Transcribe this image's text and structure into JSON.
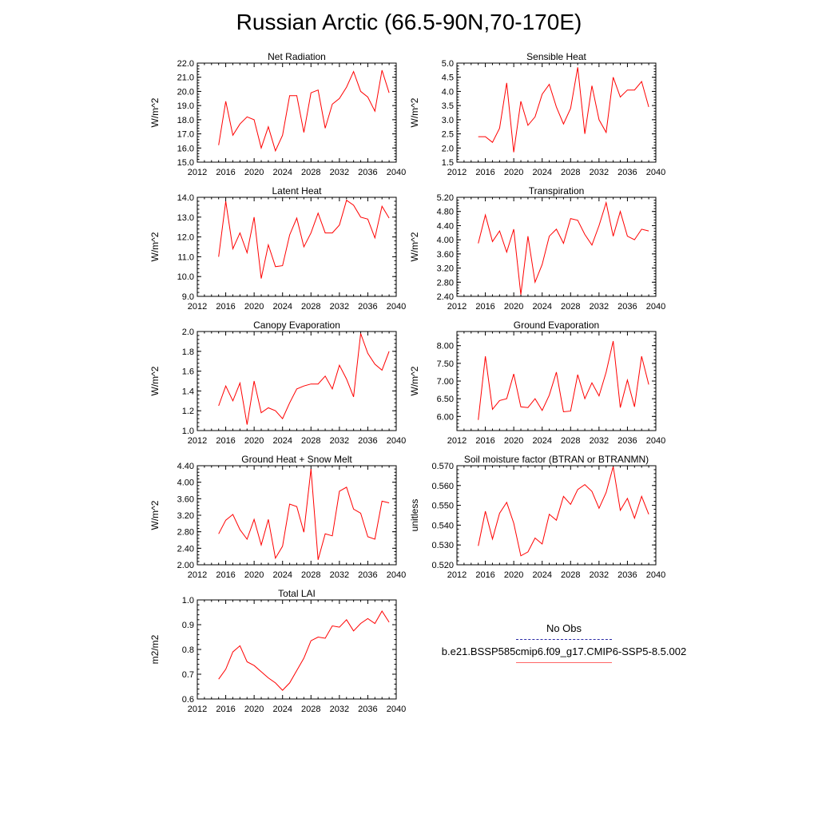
{
  "title": "Russian Arctic (66.5-90N,70-170E)",
  "legend": {
    "obs_label": "No Obs",
    "model_label": "b.e21.BSSP585cmip6.f09_g17.CMIP6-SSP5-8.5.002",
    "obs_color": "#2a2aa6",
    "model_color": "#ff0000"
  },
  "chart_data": [
    {
      "type": "line",
      "title": "Net Radiation",
      "ylabel": "W/m^2",
      "xlim": [
        2012,
        2040
      ],
      "xticks": [
        2012,
        2016,
        2020,
        2024,
        2028,
        2032,
        2036,
        2040
      ],
      "ylim": [
        15.0,
        22.0
      ],
      "yticks": [
        "15.0",
        "16.0",
        "17.0",
        "18.0",
        "19.0",
        "20.0",
        "21.0",
        "22.0"
      ],
      "x": [
        2015,
        2016,
        2017,
        2018,
        2019,
        2020,
        2021,
        2022,
        2023,
        2024,
        2025,
        2026,
        2027,
        2028,
        2029,
        2030,
        2031,
        2032,
        2033,
        2034,
        2035,
        2036,
        2037,
        2038,
        2039
      ],
      "series": [
        {
          "values": [
            16.2,
            19.3,
            16.9,
            17.7,
            18.2,
            18.0,
            16.0,
            17.5,
            15.8,
            16.9,
            19.7,
            19.7,
            17.1,
            19.9,
            20.1,
            17.4,
            19.1,
            19.5,
            20.3,
            21.4,
            20.0,
            19.6,
            18.6,
            21.5,
            19.9
          ],
          "color": "#ff0000"
        }
      ]
    },
    {
      "type": "line",
      "title": "Sensible Heat",
      "ylabel": "W/m^2",
      "xlim": [
        2012,
        2040
      ],
      "xticks": [
        2012,
        2016,
        2020,
        2024,
        2028,
        2032,
        2036,
        2040
      ],
      "ylim": [
        1.5,
        5.0
      ],
      "yticks": [
        "1.5",
        "2.0",
        "2.5",
        "3.0",
        "3.5",
        "4.0",
        "4.5",
        "5.0"
      ],
      "x": [
        2015,
        2016,
        2017,
        2018,
        2019,
        2020,
        2021,
        2022,
        2023,
        2024,
        2025,
        2026,
        2027,
        2028,
        2029,
        2030,
        2031,
        2032,
        2033,
        2034,
        2035,
        2036,
        2037,
        2038,
        2039
      ],
      "series": [
        {
          "values": [
            2.4,
            2.4,
            2.2,
            2.7,
            4.3,
            1.85,
            3.65,
            2.8,
            3.1,
            3.9,
            4.25,
            3.45,
            2.85,
            3.4,
            4.85,
            2.5,
            4.2,
            3.0,
            2.55,
            4.5,
            3.8,
            4.05,
            4.05,
            4.35,
            3.45
          ],
          "color": "#ff0000"
        }
      ]
    },
    {
      "type": "line",
      "title": "Latent Heat",
      "ylabel": "W/m^2",
      "xlim": [
        2012,
        2040
      ],
      "xticks": [
        2012,
        2016,
        2020,
        2024,
        2028,
        2032,
        2036,
        2040
      ],
      "ylim": [
        9.0,
        14.0
      ],
      "yticks": [
        "9.0",
        "10.0",
        "11.0",
        "12.0",
        "13.0",
        "14.0"
      ],
      "x": [
        2015,
        2016,
        2017,
        2018,
        2019,
        2020,
        2021,
        2022,
        2023,
        2024,
        2025,
        2026,
        2027,
        2028,
        2029,
        2030,
        2031,
        2032,
        2033,
        2034,
        2035,
        2036,
        2037,
        2038,
        2039
      ],
      "series": [
        {
          "values": [
            11.0,
            13.8,
            11.4,
            12.2,
            11.2,
            13.0,
            9.9,
            11.6,
            10.5,
            10.55,
            12.1,
            12.95,
            11.5,
            12.2,
            13.2,
            12.2,
            12.2,
            12.6,
            13.85,
            13.6,
            13.0,
            12.9,
            11.95,
            13.55,
            12.95
          ],
          "color": "#ff0000"
        }
      ]
    },
    {
      "type": "line",
      "title": "Transpiration",
      "ylabel": "W/m^2",
      "xlim": [
        2012,
        2040
      ],
      "xticks": [
        2012,
        2016,
        2020,
        2024,
        2028,
        2032,
        2036,
        2040
      ],
      "ylim": [
        2.4,
        5.2
      ],
      "yticks": [
        "2.40",
        "2.80",
        "3.20",
        "3.60",
        "4.00",
        "4.40",
        "4.80",
        "5.20"
      ],
      "x": [
        2015,
        2016,
        2017,
        2018,
        2019,
        2020,
        2021,
        2022,
        2023,
        2024,
        2025,
        2026,
        2027,
        2028,
        2029,
        2030,
        2031,
        2032,
        2033,
        2034,
        2035,
        2036,
        2037,
        2038,
        2039
      ],
      "series": [
        {
          "values": [
            3.9,
            4.7,
            3.95,
            4.25,
            3.65,
            4.3,
            2.45,
            4.1,
            2.8,
            3.3,
            4.1,
            4.3,
            3.9,
            4.6,
            4.55,
            4.15,
            3.85,
            4.4,
            5.05,
            4.1,
            4.8,
            4.1,
            4.0,
            4.3,
            4.25
          ],
          "color": "#ff0000"
        }
      ]
    },
    {
      "type": "line",
      "title": "Canopy Evaporation",
      "ylabel": "W/m^2",
      "xlim": [
        2012,
        2040
      ],
      "xticks": [
        2012,
        2016,
        2020,
        2024,
        2028,
        2032,
        2036,
        2040
      ],
      "ylim": [
        1.0,
        2.0
      ],
      "yticks": [
        "1.0",
        "1.2",
        "1.4",
        "1.6",
        "1.8",
        "2.0"
      ],
      "x": [
        2015,
        2016,
        2017,
        2018,
        2019,
        2020,
        2021,
        2022,
        2023,
        2024,
        2025,
        2026,
        2027,
        2028,
        2029,
        2030,
        2031,
        2032,
        2033,
        2034,
        2035,
        2036,
        2037,
        2038,
        2039
      ],
      "series": [
        {
          "values": [
            1.25,
            1.45,
            1.3,
            1.48,
            1.06,
            1.5,
            1.18,
            1.23,
            1.2,
            1.12,
            1.28,
            1.42,
            1.45,
            1.47,
            1.47,
            1.55,
            1.42,
            1.66,
            1.52,
            1.34,
            1.98,
            1.78,
            1.67,
            1.61,
            1.8
          ],
          "color": "#ff0000"
        }
      ]
    },
    {
      "type": "line",
      "title": "Ground Evaporation",
      "ylabel": "W/m^2",
      "xlim": [
        2012,
        2040
      ],
      "xticks": [
        2012,
        2016,
        2020,
        2024,
        2028,
        2032,
        2036,
        2040
      ],
      "ylim": [
        5.6,
        8.4
      ],
      "yticks": [
        "6.00",
        "6.50",
        "7.00",
        "7.50",
        "8.00"
      ],
      "x": [
        2015,
        2016,
        2017,
        2018,
        2019,
        2020,
        2021,
        2022,
        2023,
        2024,
        2025,
        2026,
        2027,
        2028,
        2029,
        2030,
        2031,
        2032,
        2033,
        2034,
        2035,
        2036,
        2037,
        2038,
        2039
      ],
      "series": [
        {
          "values": [
            5.9,
            7.7,
            6.2,
            6.45,
            6.5,
            7.2,
            6.27,
            6.25,
            6.5,
            6.17,
            6.6,
            7.25,
            6.13,
            6.15,
            7.18,
            6.5,
            6.95,
            6.58,
            7.25,
            8.13,
            6.25,
            7.03,
            6.27,
            7.7,
            6.9
          ],
          "color": "#ff0000"
        }
      ]
    },
    {
      "type": "line",
      "title": "Ground Heat + Snow Melt",
      "ylabel": "W/m^2",
      "xlim": [
        2012,
        2040
      ],
      "xticks": [
        2012,
        2016,
        2020,
        2024,
        2028,
        2032,
        2036,
        2040
      ],
      "ylim": [
        2.0,
        4.4
      ],
      "yticks": [
        "2.00",
        "2.40",
        "2.80",
        "3.20",
        "3.60",
        "4.00",
        "4.40"
      ],
      "x": [
        2015,
        2016,
        2017,
        2018,
        2019,
        2020,
        2021,
        2022,
        2023,
        2024,
        2025,
        2026,
        2027,
        2028,
        2029,
        2030,
        2031,
        2032,
        2033,
        2034,
        2035,
        2036,
        2037,
        2038,
        2039
      ],
      "series": [
        {
          "values": [
            2.75,
            3.08,
            3.22,
            2.85,
            2.62,
            3.1,
            2.48,
            3.1,
            2.16,
            2.45,
            3.47,
            3.41,
            2.79,
            4.32,
            2.12,
            2.75,
            2.7,
            3.78,
            3.88,
            3.35,
            3.25,
            2.68,
            2.62,
            3.54,
            3.5
          ],
          "color": "#ff0000"
        }
      ]
    },
    {
      "type": "line",
      "title": "Soil moisture factor (BTRAN or BTRANMN)",
      "ylabel": "unitless",
      "xlim": [
        2012,
        2040
      ],
      "xticks": [
        2012,
        2016,
        2020,
        2024,
        2028,
        2032,
        2036,
        2040
      ],
      "ylim": [
        0.52,
        0.57
      ],
      "yticks": [
        "0.520",
        "0.530",
        "0.540",
        "0.550",
        "0.560",
        "0.570"
      ],
      "x": [
        2015,
        2016,
        2017,
        2018,
        2019,
        2020,
        2021,
        2022,
        2023,
        2024,
        2025,
        2026,
        2027,
        2028,
        2029,
        2030,
        2031,
        2032,
        2033,
        2034,
        2035,
        2036,
        2037,
        2038,
        2039
      ],
      "series": [
        {
          "values": [
            0.5295,
            0.547,
            0.533,
            0.546,
            0.5515,
            0.541,
            0.5245,
            0.5265,
            0.5335,
            0.5305,
            0.5455,
            0.5425,
            0.5545,
            0.5505,
            0.558,
            0.5605,
            0.557,
            0.5485,
            0.5565,
            0.5695,
            0.5475,
            0.5535,
            0.5435,
            0.5545,
            0.5455
          ],
          "color": "#ff0000"
        }
      ]
    },
    {
      "type": "line",
      "title": "Total LAI",
      "ylabel": "m2/m2",
      "xlim": [
        2012,
        2040
      ],
      "xticks": [
        2012,
        2016,
        2020,
        2024,
        2028,
        2032,
        2036,
        2040
      ],
      "ylim": [
        0.6,
        1.0
      ],
      "yticks": [
        "0.6",
        "0.7",
        "0.8",
        "0.9",
        "1.0"
      ],
      "x": [
        2015,
        2016,
        2017,
        2018,
        2019,
        2020,
        2021,
        2022,
        2023,
        2024,
        2025,
        2026,
        2027,
        2028,
        2029,
        2030,
        2031,
        2032,
        2033,
        2034,
        2035,
        2036,
        2037,
        2038,
        2039
      ],
      "series": [
        {
          "values": [
            0.68,
            0.72,
            0.79,
            0.815,
            0.75,
            0.735,
            0.71,
            0.685,
            0.665,
            0.635,
            0.665,
            0.715,
            0.765,
            0.835,
            0.85,
            0.845,
            0.895,
            0.89,
            0.92,
            0.875,
            0.905,
            0.925,
            0.905,
            0.955,
            0.91
          ],
          "color": "#ff0000"
        }
      ]
    }
  ]
}
